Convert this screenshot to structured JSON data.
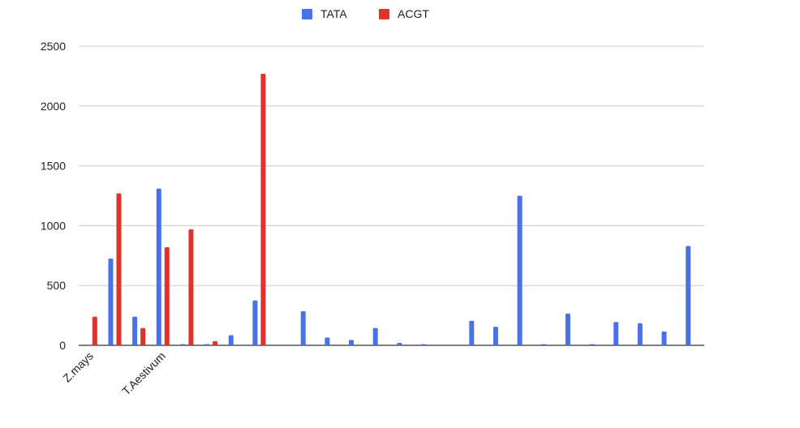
{
  "chart_data": {
    "type": "bar",
    "title": "",
    "xlabel": "",
    "ylabel": "",
    "ylim": [
      0,
      2500
    ],
    "yticks": [
      0,
      500,
      1000,
      1500,
      2000,
      2500
    ],
    "grid": true,
    "legend_position": "top",
    "categories": [
      "Z.mays",
      "",
      "",
      "T.Aestivum",
      "",
      "",
      "",
      "",
      "",
      "",
      "",
      "",
      "",
      "",
      "",
      "",
      "",
      "",
      "",
      "",
      "",
      "",
      "",
      "",
      "",
      ""
    ],
    "series": [
      {
        "name": "TATA",
        "color": "#4a72e8",
        "values": [
          0,
          725,
          240,
          1310,
          10,
          10,
          85,
          375,
          0,
          285,
          65,
          45,
          145,
          20,
          10,
          0,
          205,
          155,
          1250,
          10,
          265,
          10,
          195,
          185,
          115,
          830
        ]
      },
      {
        "name": "ACGT",
        "color": "#e0342a",
        "values": [
          240,
          1270,
          145,
          820,
          970,
          35,
          0,
          2270,
          0,
          0,
          0,
          0,
          0,
          0,
          0,
          0,
          0,
          0,
          0,
          0,
          0,
          0,
          0,
          0,
          0,
          0
        ]
      }
    ]
  }
}
